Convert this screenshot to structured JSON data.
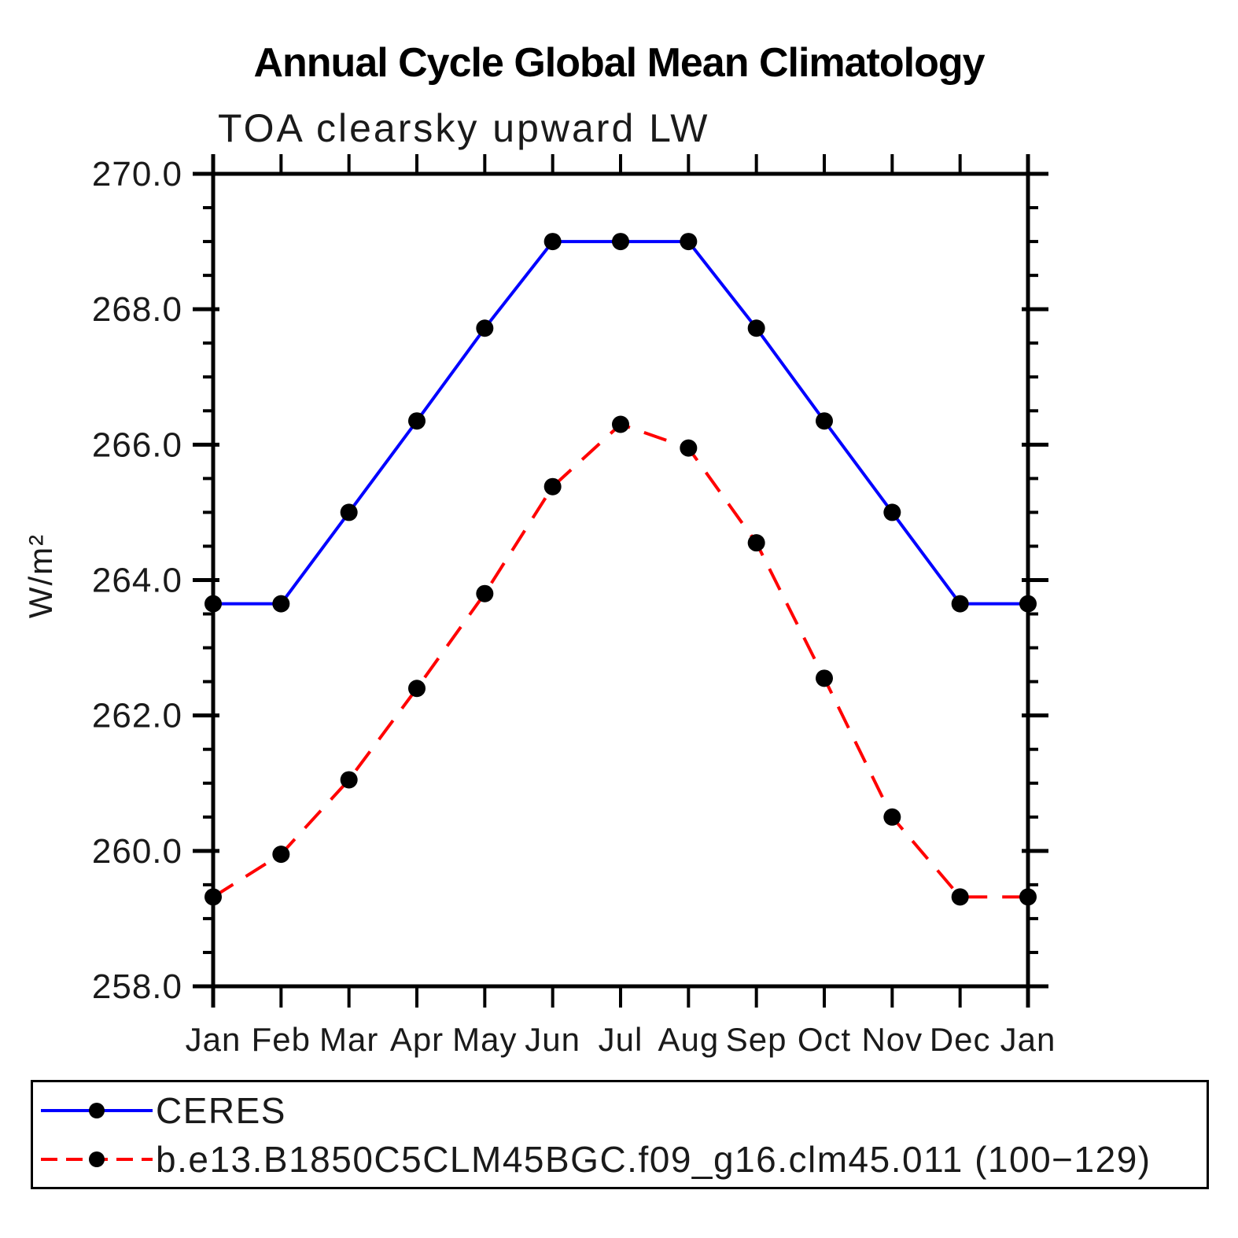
{
  "title": "Annual Cycle Global Mean Climatology",
  "subtitle": "TOA clearsky upward LW",
  "chart_data": {
    "type": "line",
    "title": "Annual Cycle Global Mean Climatology",
    "subtitle": "TOA clearsky upward LW",
    "ylabel": "W/m²",
    "xlabel": "",
    "x_categories": [
      "Jan",
      "Feb",
      "Mar",
      "Apr",
      "May",
      "Jun",
      "Jul",
      "Aug",
      "Sep",
      "Oct",
      "Nov",
      "Dec",
      "Jan"
    ],
    "ylim": [
      258.0,
      270.0
    ],
    "ytick_major_step": 2.0,
    "ytick_minor_step": 0.5,
    "ytick_labels": [
      "270.0",
      "268.0",
      "266.0",
      "264.0",
      "262.0",
      "260.0",
      "258.0"
    ],
    "grid": "off",
    "legend_position": "bottom-box",
    "axis_color": "#000000",
    "background_color": "#ffffff",
    "series": [
      {
        "name": "CERES",
        "color": "#0000ff",
        "line_style": "solid",
        "marker": "circle",
        "marker_color": "#000000",
        "values": [
          263.65,
          263.65,
          265.0,
          266.35,
          267.72,
          269.0,
          269.0,
          269.0,
          267.72,
          266.35,
          265.0,
          263.65,
          263.65
        ]
      },
      {
        "name": "b.e13.B1850C5CLM45BGC.f09_g16.clm45.011 (100−129)",
        "color": "#ff0000",
        "line_style": "dashed",
        "marker": "circle",
        "marker_color": "#000000",
        "values": [
          259.32,
          259.95,
          261.05,
          262.4,
          263.8,
          265.38,
          266.3,
          265.95,
          264.55,
          262.55,
          260.5,
          259.32,
          259.32
        ]
      }
    ]
  }
}
